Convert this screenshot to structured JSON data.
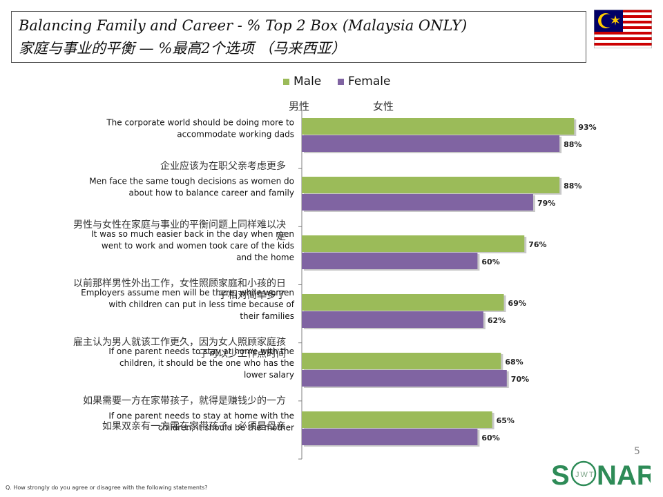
{
  "header": {
    "title_en": "Balancing Family and Career - % Top 2 Box (Malaysia ONLY)",
    "title_cn": "家庭与事业的平衡 — %最高2个选项 （马来西亚）"
  },
  "legend": {
    "male_cn": "男性",
    "female_cn": "女性"
  },
  "colors": {
    "male": "#9BBB59",
    "female": "#8064A2",
    "axis": "#7f7f7f"
  },
  "chart_data": {
    "type": "bar",
    "orientation": "horizontal",
    "categories": [
      "The corporate world should be doing more to accommodate working dads",
      "Men face the same tough decisions as women do about how to balance career and family",
      "It was so much easier back in the day when men went to work and women took care of the kids and the home",
      "Employers assume men will be there, while women with children can put in less time because of their families",
      "If one parent needs to stay at home with the children, it should be the one who has the lower salary",
      "If one parent needs to stay at home with the children, it should be the mother"
    ],
    "categories_cn": [
      "企业应该为在职父亲考虑更多",
      "男性与女性在家庭与事业的平衡问题上同样难以决定",
      "以前那样男性外出工作，女性照顾家庭和小孩的日子相对简单多了",
      "雇主认为男人就该工作更久，因为女人照顾家庭孩子可以少工作点时间",
      "如果需要一方在家带孩子，就得是赚钱少的一方",
      "如果双亲有一方需在家带孩子，必须是母亲"
    ],
    "series": [
      {
        "name": "Male",
        "values": [
          93,
          88,
          76,
          69,
          68,
          65
        ]
      },
      {
        "name": "Female",
        "values": [
          88,
          79,
          60,
          62,
          70,
          60
        ]
      }
    ],
    "data_labels": [
      [
        "93%",
        "88%",
        "76%",
        "69%",
        "68%",
        "65%"
      ],
      [
        "88%",
        "79%",
        "60%",
        "62%",
        "70%",
        "60%"
      ]
    ],
    "xlim": [
      0,
      100
    ],
    "grid": false,
    "legend_position": "top"
  },
  "footer": {
    "question": "Q. How strongly do you agree or disagree with the following statements?",
    "page_number": "5",
    "logo_text": "SONAR",
    "logo_sub": "JWT"
  }
}
